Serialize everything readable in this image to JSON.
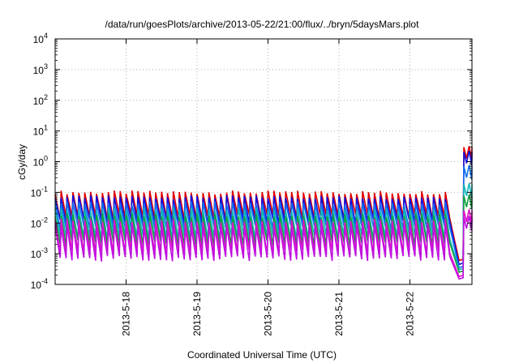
{
  "chart_data": {
    "type": "line",
    "title": "/data/run/goesPlots/archive/2013-05-22/21:00/flux/../bryn/5daysMars.plot",
    "xlabel": "Coordinated Universal Time (UTC)",
    "ylabel": "cGy/day",
    "yscale": "log",
    "ylim": [
      0.0001,
      10000
    ],
    "y_ticks": [
      {
        "base": "10",
        "exp": "-4",
        "value": 0.0001
      },
      {
        "base": "10",
        "exp": "-3",
        "value": 0.001
      },
      {
        "base": "10",
        "exp": "-2",
        "value": 0.01
      },
      {
        "base": "10",
        "exp": "-1",
        "value": 0.1
      },
      {
        "base": "10",
        "exp": "0",
        "value": 1
      },
      {
        "base": "10",
        "exp": "1",
        "value": 10
      },
      {
        "base": "10",
        "exp": "2",
        "value": 100
      },
      {
        "base": "10",
        "exp": "3",
        "value": 1000
      },
      {
        "base": "10",
        "exp": "4",
        "value": 10000
      }
    ],
    "xlim": [
      "2013-05-17 00:00",
      "2013-05-22 21:00"
    ],
    "x_ticks": [
      "2013-5-18",
      "2013-5-19",
      "2013-5-20",
      "2013-5-21",
      "2013-5-22"
    ],
    "grid": true,
    "cycle_hours": 2,
    "event_drop_time": "2013-05-22 13:30",
    "event_onset_time": "2013-05-22 18:00",
    "series": [
      {
        "color": "#e00000",
        "peak": 0.1,
        "trough": 0.016,
        "event_low": 0.0006,
        "event_level": 2.3
      },
      {
        "color": "#1010e0",
        "peak": 0.07,
        "trough": 0.011,
        "event_low": 0.00045,
        "event_level": 1.6
      },
      {
        "color": "#1070f0",
        "peak": 0.045,
        "trough": 0.007,
        "event_low": 0.00035,
        "event_level": 0.55
      },
      {
        "color": "#10b8b8",
        "peak": 0.028,
        "trough": 0.0035,
        "event_low": 0.0003,
        "event_level": 0.14
      },
      {
        "color": "#10a040",
        "peak": 0.018,
        "trough": 0.0022,
        "event_low": 0.00025,
        "event_level": 0.06
      },
      {
        "color": "#e010c8",
        "peak": 0.012,
        "trough": 0.0011,
        "event_low": 0.00018,
        "event_level": 0.02
      },
      {
        "color": "#c010e0",
        "peak": 0.008,
        "trough": 0.0007,
        "event_low": 0.00015,
        "event_level": 0.012
      }
    ]
  }
}
